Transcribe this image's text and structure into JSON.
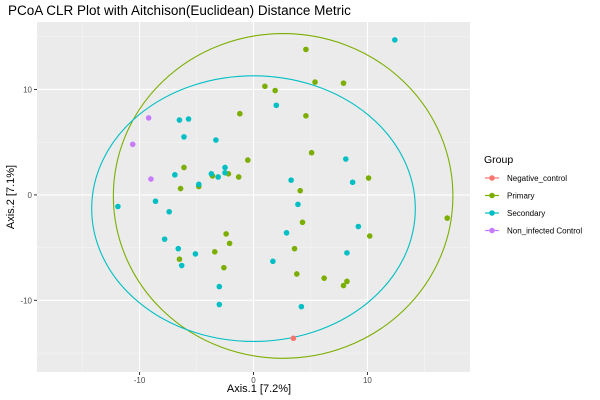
{
  "chart_data": {
    "type": "scatter",
    "title": "PCoA CLR Plot with Aitchison(Euclidean) Distance Metric",
    "xlabel": "Axis.1   [7.2%]",
    "ylabel": "Axis.2   [7.1%]",
    "xlim": [
      -19,
      19
    ],
    "ylim": [
      -16.8,
      16.4
    ],
    "xticks": [
      -10,
      0,
      10
    ],
    "yticks": [
      -10,
      0,
      10
    ],
    "grid": true,
    "legend_title": "Group",
    "legend_position": "right",
    "series": [
      {
        "name": "Negative_control",
        "color": "#F8766D",
        "points": [
          [
            3.5,
            -13.6
          ]
        ]
      },
      {
        "name": "Primary",
        "color": "#7CAE00",
        "points": [
          [
            4.6,
            13.8
          ],
          [
            5.4,
            10.7
          ],
          [
            7.9,
            10.6
          ],
          [
            1.0,
            10.3
          ],
          [
            1.9,
            9.9
          ],
          [
            -1.2,
            7.7
          ],
          [
            4.6,
            7.5
          ],
          [
            5.1,
            4.0
          ],
          [
            -0.5,
            3.3
          ],
          [
            -6.1,
            2.6
          ],
          [
            -3.6,
            1.8
          ],
          [
            -1.3,
            1.7
          ],
          [
            -2.2,
            2.0
          ],
          [
            -4.8,
            0.8
          ],
          [
            -6.4,
            0.6
          ],
          [
            4.1,
            0.4
          ],
          [
            -2.4,
            -3.7
          ],
          [
            -2.1,
            -4.6
          ],
          [
            3.6,
            -5.1
          ],
          [
            4.3,
            -2.6
          ],
          [
            10.1,
            1.6
          ],
          [
            17.0,
            -2.2
          ],
          [
            10.2,
            -3.9
          ],
          [
            -6.5,
            -6.1
          ],
          [
            -3.4,
            -5.4
          ],
          [
            -2.6,
            -6.9
          ],
          [
            3.8,
            -7.5
          ],
          [
            6.2,
            -7.9
          ],
          [
            8.2,
            -8.2
          ],
          [
            7.9,
            -8.6
          ]
        ]
      },
      {
        "name": "Secondary",
        "color": "#00BFC4",
        "points": [
          [
            12.4,
            14.7
          ],
          [
            2.0,
            8.5
          ],
          [
            -6.5,
            7.1
          ],
          [
            -5.7,
            7.2
          ],
          [
            -6.1,
            5.5
          ],
          [
            -3.3,
            5.2
          ],
          [
            -2.5,
            2.6
          ],
          [
            -3.7,
            2.0
          ],
          [
            -3.1,
            1.7
          ],
          [
            -2.5,
            2.1
          ],
          [
            -4.8,
            1.0
          ],
          [
            -6.9,
            1.9
          ],
          [
            -8.6,
            -0.6
          ],
          [
            -11.9,
            -1.1
          ],
          [
            -7.4,
            -1.6
          ],
          [
            -7.8,
            -4.2
          ],
          [
            -6.6,
            -5.1
          ],
          [
            -5.1,
            -5.6
          ],
          [
            -6.3,
            -6.7
          ],
          [
            -3.0,
            -8.7
          ],
          [
            -3.0,
            -10.4
          ],
          [
            3.3,
            1.4
          ],
          [
            8.1,
            3.4
          ],
          [
            8.7,
            1.2
          ],
          [
            3.9,
            -0.9
          ],
          [
            2.9,
            -3.6
          ],
          [
            9.2,
            -3.0
          ],
          [
            8.2,
            -5.5
          ],
          [
            1.7,
            -6.3
          ],
          [
            4.2,
            -10.6
          ]
        ]
      },
      {
        "name": "Non_infected Control",
        "color": "#C77CFF",
        "points": [
          [
            -10.6,
            4.8
          ],
          [
            -9.2,
            7.3
          ],
          [
            -9.0,
            1.5
          ]
        ]
      }
    ],
    "ellipses": [
      {
        "group": "Primary",
        "color": "#7CAE00",
        "cx": 2.6,
        "cy": -0.1,
        "rx": 14.9,
        "ry": 15.4
      },
      {
        "group": "Secondary",
        "color": "#00BFC4",
        "cx": 0.0,
        "cy": -1.3,
        "rx": 14.2,
        "ry": 12.6
      }
    ]
  }
}
